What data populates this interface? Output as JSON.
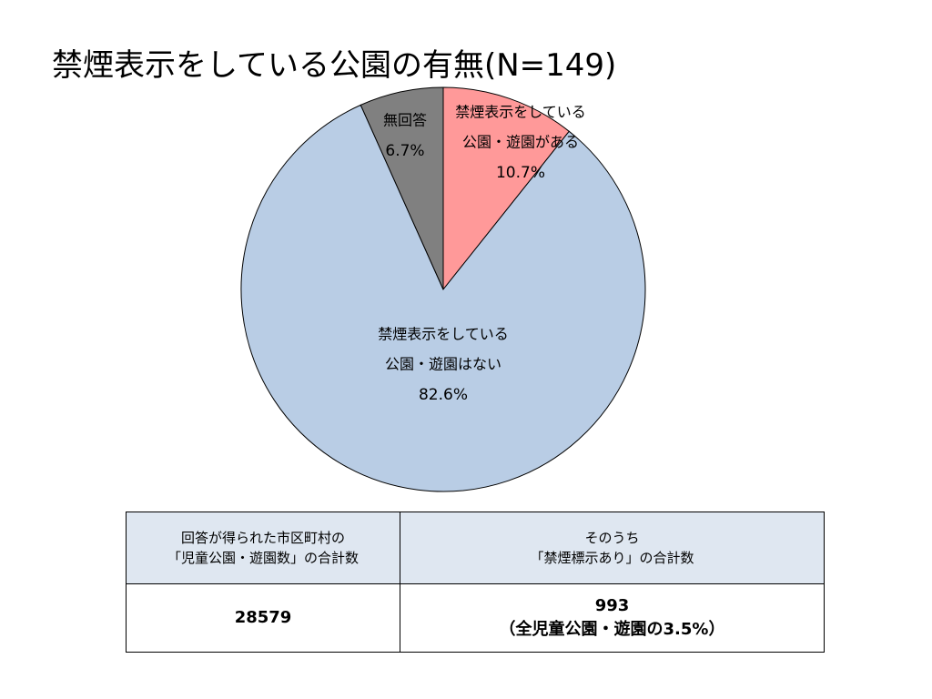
{
  "title": "禁煙表示をしている公園の有無(N=149)",
  "chart_data": {
    "type": "pie",
    "title": "禁煙表示をしている公園の有無(N=149)",
    "slices": [
      {
        "label_lines": [
          "禁煙表示をしている",
          "公園・遊園がある"
        ],
        "value_text": "10.7%",
        "value": 10.7,
        "color": "#ff9999"
      },
      {
        "label_lines": [
          "禁煙表示をしている",
          "公園・遊園はない"
        ],
        "value_text": "82.6%",
        "value": 82.6,
        "color": "#b9cde5"
      },
      {
        "label_lines": [
          "無回答"
        ],
        "value_text": "6.7%",
        "value": 6.7,
        "color": "#808080"
      }
    ]
  },
  "table": {
    "headers": [
      [
        "回答が得られた市区町村の",
        "「児童公園・遊園数」の合計数"
      ],
      [
        "そのうち",
        "「禁煙標示あり」の合計数"
      ]
    ],
    "cells": [
      [
        "28579"
      ],
      [
        "993",
        "（全児童公園・遊園の3.5%）"
      ]
    ]
  }
}
